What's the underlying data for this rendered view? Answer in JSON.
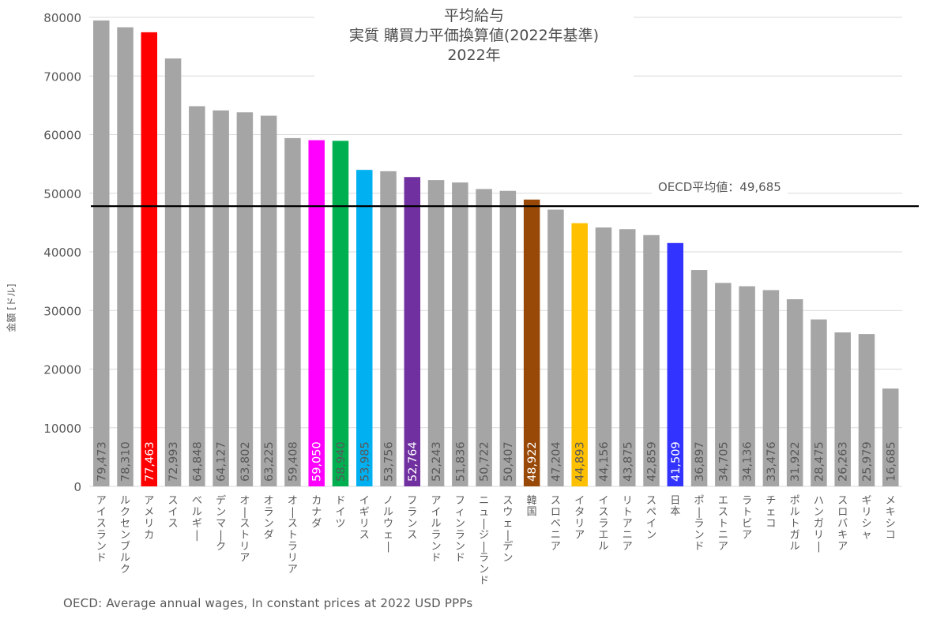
{
  "chart_data": {
    "type": "bar",
    "title": [
      "平均給与",
      "実質 購買力平価換算値(2022年基準)",
      "2022年"
    ],
    "xlabel": "",
    "ylabel": "金額 [ドル]",
    "ylim": [
      0,
      80000
    ],
    "yticks": [
      0,
      10000,
      20000,
      30000,
      40000,
      50000,
      60000,
      70000,
      80000
    ],
    "ytick_labels": [
      "0",
      "10000",
      "20000",
      "30000",
      "40000",
      "50000",
      "60000",
      "70000",
      "80000"
    ],
    "grid": true,
    "categories": [
      "アイスランド",
      "ルクセンブルク",
      "アメリカ",
      "スイス",
      "ベルギー",
      "デンマーク",
      "オーストリア",
      "オランダ",
      "オーストラリア",
      "カナダ",
      "ドイツ",
      "イギリス",
      "ノルウェー",
      "フランス",
      "アイルランド",
      "フィンランド",
      "ニュージーランド",
      "スウェーデン",
      "韓国",
      "スロベニア",
      "イタリア",
      "イスラエル",
      "リトアニア",
      "スペイン",
      "日本",
      "ポーランド",
      "エストニア",
      "ラトビア",
      "チェコ",
      "ポルトガル",
      "ハンガリー",
      "スロバキア",
      "ギリシャ",
      "メキシコ"
    ],
    "values": [
      79473,
      78310,
      77463,
      72993,
      64848,
      64127,
      63802,
      63225,
      59408,
      59050,
      58940,
      53985,
      53756,
      52764,
      52243,
      51836,
      50722,
      50407,
      48922,
      47204,
      44893,
      44156,
      43875,
      42859,
      41509,
      36897,
      34705,
      34136,
      33476,
      31922,
      28475,
      26263,
      25979,
      16685
    ],
    "value_labels": [
      "79,473",
      "78,310",
      "77,463",
      "72,993",
      "64,848",
      "64,127",
      "63,802",
      "63,225",
      "59,408",
      "59,050",
      "58,940",
      "53,985",
      "53,756",
      "52,764",
      "52,243",
      "51,836",
      "50,722",
      "50,407",
      "48,922",
      "47,204",
      "44,893",
      "44,156",
      "43,875",
      "42,859",
      "41,509",
      "36,897",
      "34,705",
      "34,136",
      "33,476",
      "31,922",
      "28,475",
      "26,263",
      "25,979",
      "16,685"
    ],
    "colors": [
      "#a5a5a5",
      "#a5a5a5",
      "#ff0000",
      "#a5a5a5",
      "#a5a5a5",
      "#a5a5a5",
      "#a5a5a5",
      "#a5a5a5",
      "#a5a5a5",
      "#ff00ff",
      "#00b050",
      "#00b0f0",
      "#a5a5a5",
      "#7030a0",
      "#a5a5a5",
      "#a5a5a5",
      "#a5a5a5",
      "#a5a5a5",
      "#984807",
      "#a5a5a5",
      "#ffc000",
      "#a5a5a5",
      "#a5a5a5",
      "#a5a5a5",
      "#3333ff",
      "#a5a5a5",
      "#a5a5a5",
      "#a5a5a5",
      "#a5a5a5",
      "#a5a5a5",
      "#a5a5a5",
      "#a5a5a5",
      "#a5a5a5",
      "#a5a5a5"
    ],
    "label_colors": [
      "#595959",
      "#595959",
      "#ffffff",
      "#595959",
      "#595959",
      "#595959",
      "#595959",
      "#595959",
      "#595959",
      "#ffffff",
      "#595959",
      "#595959",
      "#595959",
      "#ffffff",
      "#595959",
      "#595959",
      "#595959",
      "#595959",
      "#ffffff",
      "#595959",
      "#595959",
      "#595959",
      "#595959",
      "#595959",
      "#ffffff",
      "#595959",
      "#595959",
      "#595959",
      "#595959",
      "#595959",
      "#595959",
      "#595959",
      "#595959",
      "#595959"
    ],
    "reference_line": {
      "value": 49685,
      "label": "OECD平均値：49,685",
      "color": "#000000"
    },
    "legend": "none",
    "source": "OECD: Average annual wages, In constant prices at 2022 USD PPPs"
  }
}
